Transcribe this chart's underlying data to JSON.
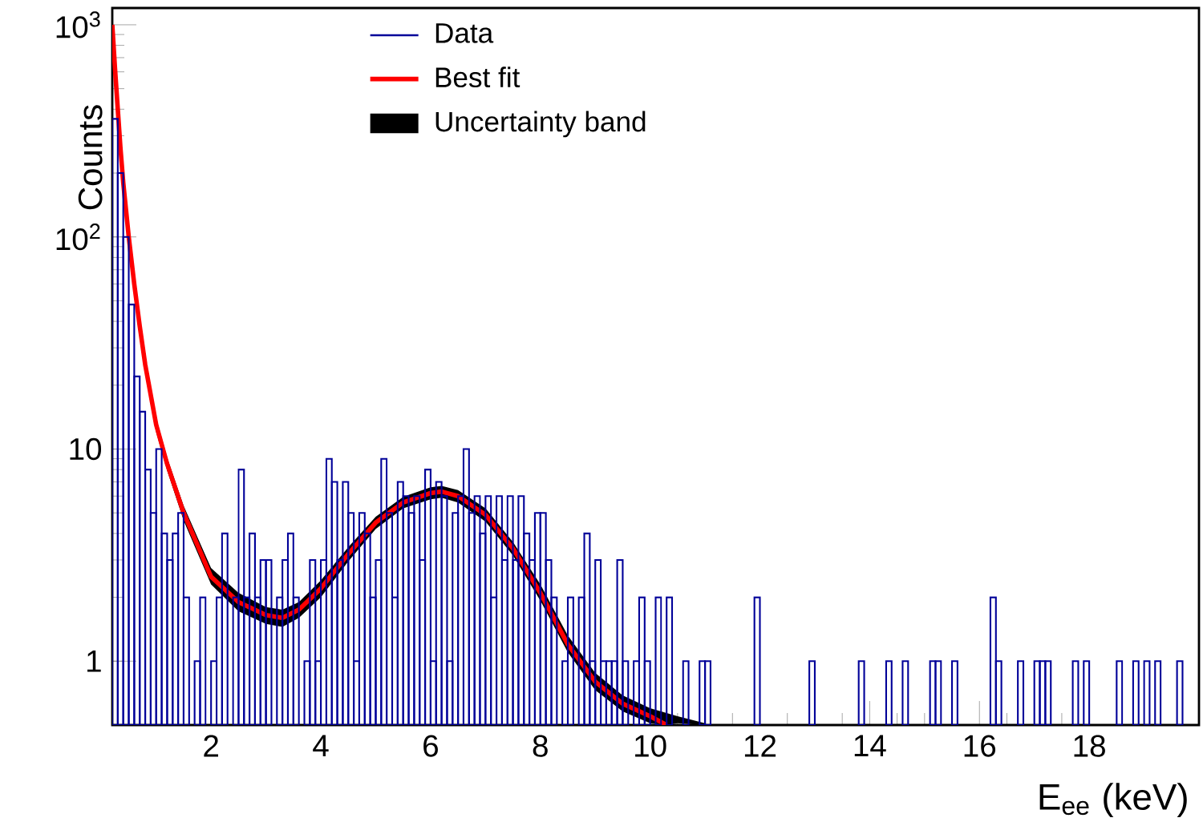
{
  "chart_data": {
    "type": "histogram",
    "xlabel": "E$_{ee}$ (keV)",
    "ylabel": "Counts",
    "xlim": [
      0.2,
      20
    ],
    "ylim": [
      0.5,
      1200
    ],
    "xticks": [
      2,
      4,
      6,
      8,
      10,
      12,
      14,
      16,
      18
    ],
    "yticks": [
      1,
      10,
      {
        "value": 100,
        "label": "10$^{2}$"
      },
      {
        "value": 1000,
        "label": "10$^{3}$"
      }
    ],
    "log": "y",
    "legend": "top",
    "series": [
      {
        "name": "Data",
        "type": "histogram",
        "color": "#000099",
        "bins": [
          0.2,
          0.3,
          0.4,
          0.5,
          0.6,
          0.7,
          0.8,
          0.9,
          1.0,
          1.1,
          1.2,
          1.3,
          1.4,
          1.5,
          1.6,
          1.7,
          1.8,
          1.9,
          2.0,
          2.1,
          2.2,
          2.3,
          2.4,
          2.5,
          2.6,
          2.7,
          2.8,
          2.9,
          3.0,
          3.1,
          3.2,
          3.3,
          3.4,
          3.5,
          3.6,
          3.7,
          3.8,
          3.9,
          4.0,
          4.1,
          4.2,
          4.3,
          4.4,
          4.5,
          4.6,
          4.7,
          4.8,
          4.9,
          5.0,
          5.1,
          5.2,
          5.3,
          5.4,
          5.5,
          5.6,
          5.7,
          5.8,
          5.9,
          6.0,
          6.1,
          6.2,
          6.3,
          6.4,
          6.5,
          6.6,
          6.7,
          6.8,
          6.9,
          7.0,
          7.1,
          7.2,
          7.3,
          7.4,
          7.5,
          7.6,
          7.7,
          7.8,
          7.9,
          8.0,
          8.1,
          8.2,
          8.3,
          8.4,
          8.5,
          8.6,
          8.7,
          8.8,
          8.9,
          9.0,
          9.1,
          9.2,
          9.3,
          9.4,
          9.5,
          9.6,
          9.7,
          9.8,
          9.9,
          10.0,
          10.1,
          10.2,
          10.3,
          10.4,
          10.5,
          10.6,
          10.7,
          10.8,
          10.9,
          11.0,
          11.1,
          11.2,
          11.3,
          11.4,
          11.5,
          11.6,
          11.7,
          11.8,
          11.9,
          12.0,
          12.1,
          12.2,
          12.3,
          12.4,
          12.5,
          12.6,
          12.7,
          12.8,
          12.9,
          13.0,
          13.1,
          13.2,
          13.3,
          13.4,
          13.5,
          13.6,
          13.7,
          13.8,
          13.9,
          14.0,
          14.1,
          14.2,
          14.3,
          14.4,
          14.5,
          14.6,
          14.7,
          14.8,
          14.9,
          15.0,
          15.1,
          15.2,
          15.3,
          15.4,
          15.5,
          15.6,
          15.7,
          15.8,
          15.9,
          16.0,
          16.1,
          16.2,
          16.3,
          16.4,
          16.5,
          16.6,
          16.7,
          16.8,
          16.9,
          17.0,
          17.1,
          17.2,
          17.3,
          17.4,
          17.5,
          17.6,
          17.7,
          17.8,
          17.9,
          18.0,
          18.1,
          18.2,
          18.3,
          18.4,
          18.5,
          18.6,
          18.7,
          18.8,
          18.9,
          19.0,
          19.1,
          19.2,
          19.3,
          19.4,
          19.5,
          19.6,
          19.7,
          19.8,
          19.9,
          20.0
        ],
        "values": [
          360,
          200,
          100,
          48,
          22,
          15,
          8,
          5,
          10,
          4,
          3,
          4,
          5,
          2,
          null,
          1,
          2,
          null,
          1,
          2,
          4,
          null,
          2,
          8,
          2,
          4,
          2,
          3,
          3,
          null,
          2,
          3,
          4,
          2,
          null,
          1,
          3,
          1,
          3,
          9,
          7,
          3,
          7,
          5,
          1,
          5,
          4,
          2,
          3,
          9,
          5,
          2,
          7,
          6,
          5,
          6,
          3,
          8,
          1,
          7,
          6,
          1,
          5,
          6,
          10,
          5,
          6,
          4,
          6,
          2,
          6,
          3,
          6,
          3,
          6,
          4,
          3,
          5,
          5,
          3,
          2,
          null,
          1,
          2,
          null,
          2,
          4,
          1,
          3,
          1,
          1,
          1,
          3,
          1,
          null,
          1,
          2,
          1,
          null,
          2,
          null,
          2,
          null,
          null,
          1,
          null,
          null,
          1,
          1,
          null,
          null,
          null,
          null,
          null,
          null,
          null,
          null,
          2,
          null,
          null,
          null,
          null,
          null,
          null,
          null,
          null,
          null,
          1,
          null,
          null,
          null,
          null,
          null,
          null,
          null,
          null,
          1,
          null,
          null,
          null,
          null,
          1,
          null,
          null,
          1,
          null,
          null,
          null,
          null,
          1,
          1,
          null,
          null,
          1,
          null,
          null,
          null,
          null,
          null,
          null,
          2,
          1,
          null,
          null,
          null,
          1,
          null,
          null,
          1,
          1,
          1,
          null,
          null,
          null,
          null,
          1,
          null,
          1,
          null,
          null,
          null,
          null,
          null,
          1,
          null,
          null,
          1,
          null,
          1,
          null,
          1,
          null,
          null,
          null,
          1,
          null,
          null,
          null
        ]
      },
      {
        "name": "Best fit",
        "type": "line",
        "color": "#ff0000",
        "x": [
          0.2,
          0.25,
          0.3,
          0.35,
          0.4,
          0.5,
          0.6,
          0.7,
          0.8,
          1.0,
          1.2,
          1.5,
          2.0,
          2.5,
          3.0,
          3.3,
          3.6,
          4.0,
          4.5,
          5.0,
          5.5,
          6.0,
          6.2,
          6.5,
          7.0,
          7.5,
          8.0,
          8.5,
          9.0,
          9.5,
          10.0,
          10.3,
          10.5,
          11.0
        ],
        "values": [
          1000,
          620,
          400,
          260,
          180,
          100,
          60,
          38,
          25,
          13,
          8.5,
          5,
          2.5,
          1.9,
          1.65,
          1.6,
          1.75,
          2.2,
          3.2,
          4.5,
          5.6,
          6.2,
          6.3,
          6.0,
          4.9,
          3.4,
          2.1,
          1.2,
          0.8,
          0.63,
          0.55,
          0.5,
          null,
          null
        ],
        "lower": [
          null,
          null,
          null,
          null,
          null,
          null,
          null,
          null,
          23,
          12,
          7.9,
          4.6,
          2.3,
          1.72,
          1.5,
          1.45,
          1.6,
          2.0,
          2.95,
          4.2,
          5.25,
          5.8,
          5.9,
          5.6,
          4.55,
          3.15,
          1.93,
          1.1,
          0.73,
          0.58,
          0.51,
          0.5,
          0.51,
          0.5
        ],
        "upper": [
          null,
          null,
          null,
          null,
          null,
          null,
          null,
          null,
          27,
          14,
          9.1,
          5.4,
          2.75,
          2.1,
          1.8,
          1.75,
          1.9,
          2.4,
          3.45,
          4.8,
          5.95,
          6.6,
          6.7,
          6.4,
          5.25,
          3.65,
          2.3,
          1.32,
          0.88,
          0.69,
          0.6,
          0.57,
          0.55,
          0.51
        ]
      }
    ],
    "annotations": [
      "Uncertainty band"
    ]
  }
}
